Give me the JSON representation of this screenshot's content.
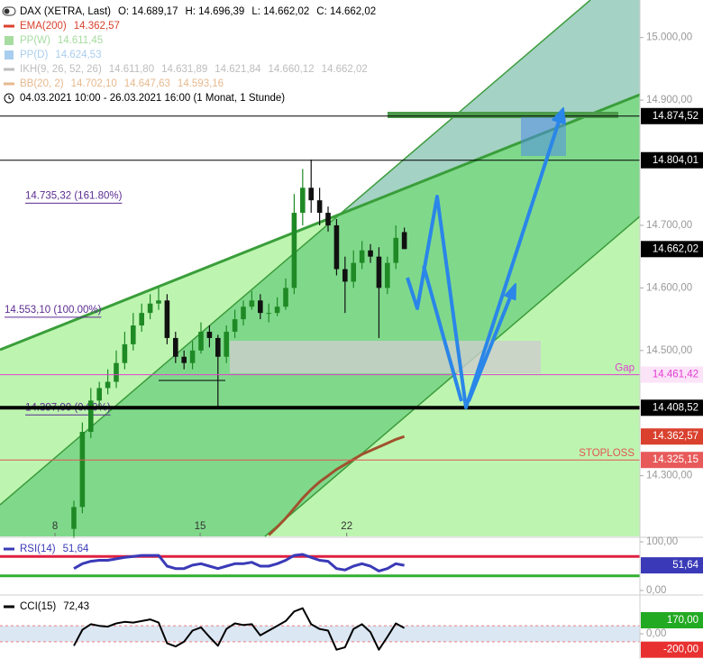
{
  "chart_data": [
    {
      "type": "candlestick",
      "legend": [
        {
          "name": "DAX (XETRA, Last)",
          "values": [
            "O: 14.689,17",
            "H: 14.696,39",
            "L: 14.662,02",
            "C: 14.662,02"
          ],
          "color": "#000000",
          "swatch": "toggle"
        },
        {
          "name": "EMA(200)",
          "values": [
            "14.362,57"
          ],
          "color": "#d9412e",
          "swatch": "dash"
        },
        {
          "name": "PP(W)",
          "values": [
            "14.611,45"
          ],
          "color": "#a6dca0",
          "swatch": "square"
        },
        {
          "name": "PP(D)",
          "values": [
            "14.624,53"
          ],
          "color": "#a9cdee",
          "swatch": "square"
        },
        {
          "name": "IKH(9, 26, 52, 26)",
          "values": [
            "14.611,80",
            "14.631,89",
            "14.621,84",
            "14.660,12",
            "14.662,02"
          ],
          "color": "#bdbdbd",
          "swatch": "dash"
        },
        {
          "name": "BB(20, 2)",
          "values": [
            "14.702,10",
            "14.647,63",
            "14.593,16"
          ],
          "color": "#e6b98e",
          "swatch": "dash"
        }
      ],
      "subtitle": "04.03.2021 10:00 - 26.03.2021 16:00   (1 Monat, 1 Stunde)",
      "xlim": [
        -8.72,
        66.8
      ],
      "xticks": [
        {
          "value": -2.23,
          "label": "8"
        },
        {
          "value": 14.9,
          "label": "15"
        },
        {
          "value": 32.2,
          "label": "22"
        }
      ],
      "ylim": [
        14203,
        15060
      ],
      "yticks": [
        {
          "value": 15000,
          "label": "15.000,00"
        },
        {
          "value": 14900,
          "label": "14.900,00"
        },
        {
          "value": 14700,
          "label": "14.700,00"
        },
        {
          "value": 14600,
          "label": "14.600,00"
        },
        {
          "value": 14500,
          "label": "14.500,00"
        },
        {
          "value": 14300,
          "label": "14.300,00"
        }
      ],
      "up_color": "#1f8a25",
      "down_color": "#111111",
      "open": [
        14215,
        14250,
        14370,
        14420,
        14440,
        14450,
        14480,
        14510,
        14540,
        14560,
        14575,
        14580,
        14520,
        14490,
        14480,
        14500,
        14530,
        14520,
        14490,
        14530,
        14550,
        14570,
        14580,
        14560,
        14560,
        14570,
        14600,
        14720,
        14760,
        14740,
        14720,
        14700,
        14630,
        14610,
        14640,
        14660,
        14650,
        14600,
        14640,
        14689.17
      ],
      "high": [
        14260,
        14385,
        14440,
        14450,
        14470,
        14500,
        14530,
        14560,
        14575,
        14590,
        14600,
        14590,
        14530,
        14500,
        14515,
        14545,
        14540,
        14525,
        14540,
        14565,
        14580,
        14595,
        14590,
        14575,
        14585,
        14615,
        14750,
        14790,
        14805,
        14760,
        14730,
        14710,
        14650,
        14660,
        14675,
        14670,
        14665,
        14650,
        14700,
        14696.39
      ],
      "low": [
        14200,
        14240,
        14360,
        14410,
        14430,
        14440,
        14470,
        14500,
        14530,
        14550,
        14565,
        14510,
        14480,
        14470,
        14470,
        14495,
        14505,
        14408,
        14480,
        14520,
        14540,
        14565,
        14550,
        14545,
        14555,
        14565,
        14590,
        14700,
        14720,
        14700,
        14690,
        14620,
        14560,
        14600,
        14630,
        14640,
        14520,
        14590,
        14630,
        14662.02
      ],
      "close": [
        14250,
        14370,
        14420,
        14440,
        14450,
        14480,
        14510,
        14540,
        14560,
        14575,
        14580,
        14520,
        14490,
        14480,
        14500,
        14530,
        14520,
        14490,
        14530,
        14550,
        14570,
        14580,
        14560,
        14560,
        14570,
        14600,
        14720,
        14760,
        14740,
        14720,
        14700,
        14630,
        14610,
        14640,
        14660,
        14650,
        14600,
        14640,
        14680,
        14662.02
      ],
      "ema": {
        "color": "#a0522d",
        "values": [
          null,
          null,
          null,
          null,
          null,
          null,
          null,
          null,
          null,
          null,
          null,
          null,
          null,
          null,
          null,
          null,
          null,
          null,
          null,
          null,
          null,
          null,
          null,
          14205,
          14218,
          14232,
          14248,
          14264,
          14278,
          14290,
          14300,
          14310,
          14318,
          14326,
          14334,
          14340,
          14346,
          14352,
          14358,
          14362.57
        ]
      },
      "annotations": [
        {
          "value": 14735.32,
          "label": "14.735,32 (161.80%)"
        },
        {
          "value": 14553.1,
          "label": "14.553,10 (100.00%)"
        },
        {
          "value": 14397.0,
          "label": "14.397,00 (0.00%)"
        }
      ],
      "annotation_color": "#5b2c91",
      "levels": [
        {
          "value": 14874.52,
          "label": "14.874,52",
          "color": "#000000",
          "bg": "#000000",
          "fg": "#ffffff",
          "width": 1
        },
        {
          "value": 14804.01,
          "label": "14.804,01",
          "color": "#000000",
          "bg": "#000000",
          "fg": "#ffffff",
          "width": 1
        },
        {
          "value": 14662.02,
          "label": "14.662,02",
          "color": "#000000",
          "bg": "#000000",
          "fg": "#ffffff",
          "line": false
        },
        {
          "value": 14461.42,
          "label": "14.461,42",
          "name": "Gap",
          "color": "#e23ed2",
          "bg": "#fbe3f8",
          "fg": "#e23ed2",
          "width": 1
        },
        {
          "value": 14408.52,
          "label": "14.408,52",
          "color": "#000000",
          "bg": "#000000",
          "fg": "#ffffff",
          "width": 4
        },
        {
          "value": 14362.57,
          "label": "14.362,57",
          "color": "#d9412e",
          "bg": "#d9412e",
          "fg": "#ffffff",
          "line": false
        },
        {
          "value": 14325.15,
          "label": "14.325,15",
          "name": "STOPLOSS",
          "color": "#e25555",
          "bg": "#e85a5a",
          "fg": "#ffffff",
          "width": 1
        }
      ]
    },
    {
      "type": "line",
      "legend": [
        {
          "name": "RSI(14)",
          "values": [
            "51,64"
          ],
          "color": "#3a3ab8",
          "swatch": "dash"
        }
      ],
      "ylim": [
        -9.3,
        109.3
      ],
      "yticks": [
        {
          "value": 100,
          "label": "100,00"
        },
        {
          "value": 0,
          "label": "0,00"
        }
      ],
      "color": "#3a3ab8",
      "width": 3,
      "values": [
        45,
        55,
        60,
        62,
        62,
        65,
        68,
        70,
        72,
        72,
        72,
        50,
        45,
        45,
        52,
        55,
        50,
        45,
        50,
        55,
        55,
        58,
        50,
        50,
        55,
        62,
        72,
        74,
        68,
        62,
        60,
        45,
        42,
        50,
        55,
        50,
        40,
        45,
        55,
        51.64
      ],
      "levels": [
        {
          "value": 70,
          "color": "#e02040",
          "width": 3
        },
        {
          "value": 30,
          "color": "#30b030",
          "width": 3
        },
        {
          "value": 51.64,
          "label": "51,64",
          "color": "#3a3ab8",
          "bg": "#3a3ab8",
          "fg": "#ffffff",
          "line": false
        }
      ]
    },
    {
      "type": "line",
      "legend": [
        {
          "name": "CCI(15)",
          "values": [
            "72,43"
          ],
          "color": "#000000",
          "swatch": "dash"
        }
      ],
      "ylim": [
        -317,
        487
      ],
      "yticks": [
        {
          "value": 0,
          "label": "0,00"
        }
      ],
      "band": [
        -100,
        100
      ],
      "band_color": "#dbe7f3",
      "color": "#000000",
      "width": 2,
      "values": [
        -150,
        50,
        120,
        100,
        90,
        130,
        150,
        140,
        160,
        180,
        140,
        -120,
        -160,
        -100,
        40,
        80,
        -40,
        -150,
        60,
        130,
        110,
        120,
        -20,
        40,
        100,
        160,
        280,
        320,
        120,
        60,
        40,
        -200,
        -170,
        60,
        120,
        20,
        -200,
        -40,
        130,
        72.43
      ],
      "levels": [
        {
          "value": 100,
          "color": "#f08080",
          "width": 1,
          "dash": true
        },
        {
          "value": -100,
          "color": "#f08080",
          "width": 1,
          "dash": true
        },
        {
          "value": 170,
          "label": "170,00",
          "color": "#22aa22",
          "bg": "#22aa22",
          "fg": "#ffffff",
          "line": false
        },
        {
          "value": -200,
          "label": "-200,00",
          "color": "#e83030",
          "bg": "#e83030",
          "fg": "#ffffff",
          "line": false
        }
      ]
    }
  ]
}
